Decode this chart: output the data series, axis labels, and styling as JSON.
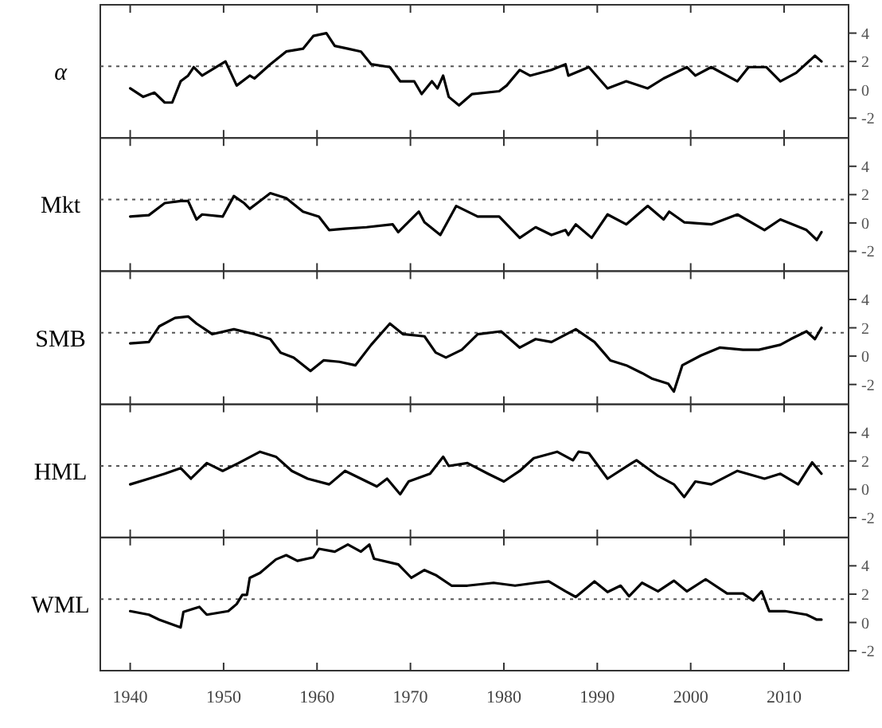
{
  "chart_data": [
    {
      "type": "line",
      "ylabel": "α",
      "xlim": [
        1936.8,
        2016.9
      ],
      "xticks": [
        1940,
        1950,
        1960,
        1970,
        1980,
        1990,
        2000,
        2010
      ],
      "ylim": [
        -3.4,
        6.0
      ],
      "yticks": [
        -2,
        0,
        2,
        4
      ],
      "tick_labels": "y",
      "ref_lines": [
        {
          "axis": "y",
          "value": 1.65,
          "line_style": "dotted",
          "color": "#555555"
        }
      ],
      "x": [
        1940,
        1941.4,
        1942.6,
        1943.7,
        1944.5,
        1945.4,
        1946.2,
        1946.8,
        1947.7,
        1950.2,
        1951.4,
        1952.8,
        1953.3,
        1955,
        1956.7,
        1958.5,
        1959.6,
        1961,
        1961.9,
        1963.3,
        1964.7,
        1965.8,
        1967.8,
        1968.9,
        1970.4,
        1971.2,
        1972.3,
        1972.9,
        1973.5,
        1974.1,
        1975.2,
        1976.6,
        1979.5,
        1980.3,
        1981.7,
        1982.8,
        1985.1,
        1986.6,
        1986.9,
        1989.1,
        1991.1,
        1993.1,
        1995.4,
        1997.1,
        1999.6,
        2000.5,
        2002.2,
        2005,
        2006.2,
        2008.1,
        2009.6,
        2011.3,
        2013.3,
        2014
      ],
      "series": [
        {
          "color": "#000000",
          "values": [
            0.1,
            -0.5,
            -0.2,
            -0.9,
            -0.9,
            0.6,
            1.0,
            1.6,
            1.0,
            2.0,
            0.3,
            1.0,
            0.8,
            1.8,
            2.7,
            2.9,
            3.8,
            4.0,
            3.1,
            2.9,
            2.7,
            1.8,
            1.6,
            0.6,
            0.6,
            -0.3,
            0.6,
            0.1,
            1.0,
            -0.5,
            -1.1,
            -0.3,
            -0.1,
            0.3,
            1.4,
            1.0,
            1.4,
            1.8,
            1.0,
            1.6,
            0.1,
            0.6,
            0.1,
            0.8,
            1.6,
            1.0,
            1.6,
            0.6,
            1.6,
            1.6,
            0.6,
            1.2,
            2.4,
            2.0
          ]
        }
      ]
    },
    {
      "type": "line",
      "ylabel": "Mkt",
      "xlim": [
        1936.8,
        2016.9
      ],
      "xticks": [
        1940,
        1950,
        1960,
        1970,
        1980,
        1990,
        2000,
        2010
      ],
      "ylim": [
        -3.4,
        6.0
      ],
      "yticks": [
        -2,
        0,
        2,
        4
      ],
      "tick_labels": "y",
      "ref_lines": [
        {
          "axis": "y",
          "value": 1.65,
          "line_style": "dotted",
          "color": "#555555"
        }
      ],
      "x": [
        1940,
        1942,
        1943.7,
        1945.4,
        1946.2,
        1947.1,
        1947.7,
        1949.9,
        1951.1,
        1952.2,
        1952.8,
        1955,
        1956.7,
        1958.5,
        1960.2,
        1961.3,
        1963,
        1965.3,
        1968.1,
        1968.7,
        1970.9,
        1971.5,
        1973.2,
        1974.9,
        1977.2,
        1979.5,
        1981.7,
        1983.4,
        1985.1,
        1986.6,
        1986.9,
        1987.7,
        1989.4,
        1991.1,
        1993.1,
        1995.4,
        1997.1,
        1997.7,
        1999.3,
        2002.2,
        2005,
        2007.9,
        2009.6,
        2012.4,
        2013.5,
        2014
      ],
      "series": [
        {
          "color": "#000000",
          "values": [
            0.45,
            0.55,
            1.4,
            1.55,
            1.55,
            0.25,
            0.6,
            0.45,
            1.9,
            1.4,
            1.0,
            2.1,
            1.75,
            0.8,
            0.45,
            -0.5,
            -0.4,
            -0.3,
            -0.1,
            -0.65,
            0.8,
            0.05,
            -0.85,
            1.2,
            0.45,
            0.45,
            -1.05,
            -0.3,
            -0.85,
            -0.5,
            -0.85,
            -0.1,
            -1.05,
            0.6,
            -0.1,
            1.2,
            0.25,
            0.8,
            0.05,
            -0.1,
            0.6,
            -0.5,
            0.25,
            -0.5,
            -1.2,
            -0.65
          ]
        }
      ]
    },
    {
      "type": "line",
      "ylabel": "SMB",
      "xlim": [
        1936.8,
        2016.9
      ],
      "xticks": [
        1940,
        1950,
        1960,
        1970,
        1980,
        1990,
        2000,
        2010
      ],
      "ylim": [
        -3.4,
        6.0
      ],
      "yticks": [
        -2,
        0,
        2,
        4
      ],
      "tick_labels": "y",
      "ref_lines": [
        {
          "axis": "y",
          "value": 1.65,
          "line_style": "dotted",
          "color": "#555555"
        }
      ],
      "x": [
        1940,
        1942,
        1943.1,
        1944.8,
        1946.2,
        1947.1,
        1948.8,
        1951.1,
        1953.3,
        1955,
        1956.1,
        1957.5,
        1959.3,
        1960.7,
        1962.4,
        1964.1,
        1965.8,
        1967.8,
        1969.2,
        1971.5,
        1972.7,
        1973.8,
        1975.5,
        1977.2,
        1979.7,
        1981.7,
        1983.4,
        1985.1,
        1987.7,
        1989.7,
        1991.4,
        1993.1,
        1994.8,
        1995.9,
        1997.6,
        1998.2,
        1999.1,
        2001.1,
        2003.1,
        2005.6,
        2007.3,
        2009.6,
        2010.7,
        2012.4,
        2013.3,
        2014
      ],
      "series": [
        {
          "color": "#000000",
          "values": [
            0.9,
            1.0,
            2.1,
            2.7,
            2.8,
            2.3,
            1.55,
            1.9,
            1.55,
            1.2,
            0.25,
            -0.1,
            -1.05,
            -0.3,
            -0.4,
            -0.65,
            0.8,
            2.3,
            1.55,
            1.4,
            0.25,
            -0.1,
            0.45,
            1.55,
            1.75,
            0.6,
            1.2,
            1.0,
            1.9,
            1.0,
            -0.3,
            -0.65,
            -1.2,
            -1.6,
            -1.95,
            -2.5,
            -0.65,
            0.05,
            0.6,
            0.45,
            0.45,
            0.8,
            1.2,
            1.75,
            1.2,
            2.0
          ]
        }
      ]
    },
    {
      "type": "line",
      "ylabel": "HML",
      "xlim": [
        1936.8,
        2016.9
      ],
      "xticks": [
        1940,
        1950,
        1960,
        1970,
        1980,
        1990,
        2000,
        2010
      ],
      "ylim": [
        -3.4,
        6.0
      ],
      "yticks": [
        -2,
        0,
        2,
        4
      ],
      "tick_labels": "y",
      "ref_lines": [
        {
          "axis": "y",
          "value": 1.65,
          "line_style": "dotted",
          "color": "#555555"
        }
      ],
      "x": [
        1940,
        1942,
        1943.7,
        1945.4,
        1946.5,
        1948.2,
        1949.9,
        1951.6,
        1953.9,
        1955.6,
        1957.3,
        1959,
        1961.3,
        1963,
        1964.7,
        1966.4,
        1967.5,
        1968.9,
        1969.8,
        1972.1,
        1973.5,
        1974.1,
        1976.1,
        1978.3,
        1980,
        1981.7,
        1983.2,
        1985.7,
        1987.4,
        1988,
        1989.1,
        1991.1,
        1993.7,
        1994.2,
        1996.5,
        1998.2,
        1999.3,
        2000.5,
        2002.2,
        2005,
        2007.9,
        2009.6,
        2011.5,
        2013,
        2014
      ],
      "series": [
        {
          "color": "#000000",
          "values": [
            0.35,
            0.75,
            1.1,
            1.5,
            0.75,
            1.85,
            1.3,
            1.85,
            2.65,
            2.3,
            1.3,
            0.75,
            0.35,
            1.3,
            0.75,
            0.2,
            0.75,
            -0.35,
            0.55,
            1.1,
            2.3,
            1.65,
            1.85,
            1.1,
            0.55,
            1.3,
            2.2,
            2.65,
            2.05,
            2.65,
            2.55,
            0.75,
            1.85,
            2.05,
            0.95,
            0.35,
            -0.55,
            0.55,
            0.35,
            1.3,
            0.75,
            1.1,
            0.35,
            1.9,
            1.1
          ]
        }
      ]
    },
    {
      "type": "line",
      "ylabel": "WML",
      "xlim": [
        1936.8,
        2016.9
      ],
      "xticks": [
        1940,
        1950,
        1960,
        1970,
        1980,
        1990,
        2000,
        2010
      ],
      "ylim": [
        -3.4,
        6.0
      ],
      "yticks": [
        -2,
        0,
        2,
        4
      ],
      "ref_lines": [
        {
          "axis": "y",
          "value": 1.65,
          "line_style": "dotted",
          "color": "#555555"
        }
      ],
      "x": [
        1940,
        1942,
        1943.1,
        1945.4,
        1945.7,
        1947.4,
        1948.2,
        1950.5,
        1951.4,
        1952,
        1952.5,
        1952.8,
        1953.9,
        1955.6,
        1956.7,
        1957.9,
        1959.6,
        1960.2,
        1961.9,
        1963.3,
        1964.7,
        1965.6,
        1966.1,
        1968.7,
        1970.1,
        1971.5,
        1972.7,
        1974.4,
        1976.1,
        1978.9,
        1981.2,
        1983.4,
        1984.8,
        1986.6,
        1987.7,
        1989.7,
        1991.1,
        1992.5,
        1993.4,
        1994.8,
        1996.5,
        1998.2,
        1999.6,
        2001.6,
        2003.9,
        2005.6,
        2006.7,
        2007.6,
        2008.4,
        2010.1,
        2012.4,
        2013.5,
        2014
      ],
      "series": [
        {
          "color": "#000000",
          "values": [
            0.8,
            0.55,
            0.2,
            -0.35,
            0.75,
            1.1,
            0.55,
            0.8,
            1.3,
            1.95,
            1.95,
            3.15,
            3.5,
            4.45,
            4.75,
            4.35,
            4.6,
            5.2,
            5.0,
            5.5,
            5.0,
            5.5,
            4.5,
            4.1,
            3.15,
            3.7,
            3.35,
            2.6,
            2.6,
            2.8,
            2.6,
            2.8,
            2.9,
            2.2,
            1.8,
            2.9,
            2.15,
            2.6,
            1.85,
            2.8,
            2.2,
            2.95,
            2.2,
            3.05,
            2.05,
            2.05,
            1.55,
            2.2,
            0.8,
            0.8,
            0.55,
            0.2,
            0.2
          ]
        }
      ]
    }
  ]
}
